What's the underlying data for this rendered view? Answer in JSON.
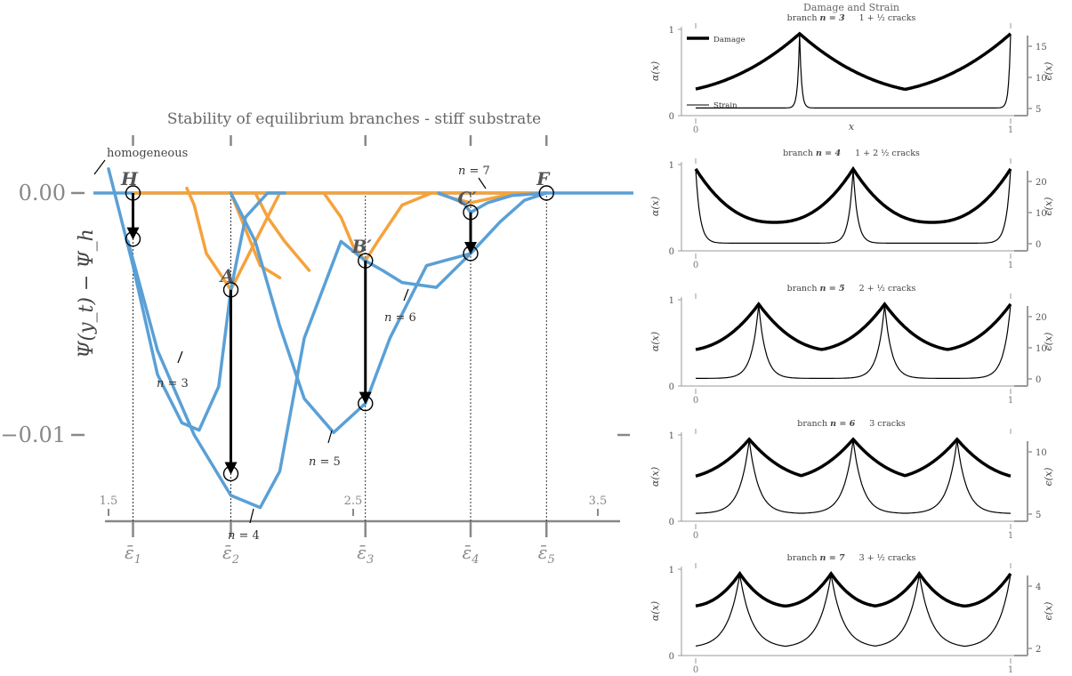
{
  "chart_data": [
    {
      "type": "line",
      "title": "Stability of equilibrium branches - stiff substrate",
      "ylabel": "Ψ(y_t) − Ψ_h",
      "xlim": [
        1.35,
        3.6
      ],
      "ylim": [
        -0.0135,
        0.0012
      ],
      "x_ticks": [
        1.5,
        2.5,
        3.5
      ],
      "y_ticks": [
        {
          "value": 0.0,
          "label": "0.00"
        },
        {
          "value": -0.01,
          "label": "−0.01"
        }
      ],
      "strain_marks": [
        {
          "label": "ε̄1",
          "sub": "1",
          "x": 1.6
        },
        {
          "label": "ε̄2",
          "sub": "2",
          "x": 2.0
        },
        {
          "label": "ε̄3",
          "sub": "3",
          "x": 2.55
        },
        {
          "label": "ε̄4",
          "sub": "4",
          "x": 2.98
        },
        {
          "label": "ε̄5",
          "sub": "5",
          "x": 3.29
        }
      ],
      "colors": {
        "stable": "#5aa0d6",
        "unstable": "#f5a23c",
        "axis": "#888888"
      },
      "points": [
        {
          "label": "H",
          "x": 1.6,
          "y": 0.0
        },
        {
          "label": "A",
          "x": 2.0,
          "y": -0.004
        },
        {
          "label": "B′",
          "x": 2.55,
          "y": -0.0028
        },
        {
          "label": "C′",
          "x": 2.98,
          "y": -0.0008
        },
        {
          "label": "F",
          "x": 3.29,
          "y": 0.0
        }
      ],
      "jumps": [
        {
          "x": 1.6,
          "from": 0.0,
          "to": -0.0019
        },
        {
          "x": 2.0,
          "from": -0.004,
          "to": -0.0116
        },
        {
          "x": 2.55,
          "from": -0.0028,
          "to": -0.0087
        },
        {
          "x": 2.98,
          "from": -0.0008,
          "to": -0.0025
        }
      ],
      "branch_labels": [
        {
          "label": "homogeneous",
          "text": "homogeneous"
        },
        {
          "label": "n = 3",
          "n": "3"
        },
        {
          "label": "n = 4",
          "n": "4"
        },
        {
          "label": "n = 5",
          "n": "5"
        },
        {
          "label": "n = 6",
          "n": "6"
        },
        {
          "label": "n = 7",
          "n": "7"
        }
      ],
      "series": [
        {
          "n": 3,
          "x": [
            1.5,
            1.6,
            1.7,
            1.8,
            1.87,
            1.95,
            2.0,
            2.06,
            2.15,
            2.22
          ],
          "y": [
            0.001,
            -0.003,
            -0.0075,
            -0.0095,
            -0.0098,
            -0.008,
            -0.004,
            -0.001,
            0.0,
            0.0
          ]
        },
        {
          "n": 4,
          "x": [
            1.58,
            1.7,
            1.85,
            2.0,
            2.12,
            2.2,
            2.3,
            2.45,
            2.55
          ],
          "y": [
            -0.002,
            -0.0065,
            -0.01,
            -0.0125,
            -0.013,
            -0.0115,
            -0.006,
            -0.002,
            -0.0028
          ]
        },
        {
          "n": 5,
          "x": [
            2.0,
            2.1,
            2.2,
            2.3,
            2.42,
            2.55,
            2.65,
            2.8,
            2.98
          ],
          "y": [
            0.0,
            -0.002,
            -0.0055,
            -0.0085,
            -0.0099,
            -0.0087,
            -0.006,
            -0.003,
            -0.0025
          ]
        },
        {
          "n": 6,
          "x": [
            2.55,
            2.62,
            2.7,
            2.84,
            2.98,
            3.1,
            3.2,
            3.29
          ],
          "y": [
            -0.0028,
            -0.0032,
            -0.0037,
            -0.0039,
            -0.0025,
            -0.0012,
            -0.0003,
            0.0
          ]
        },
        {
          "n": 7,
          "x": [
            2.85,
            2.95,
            2.98,
            3.05,
            3.15,
            3.29
          ],
          "y": [
            0.0,
            -0.0004,
            -0.0008,
            -0.0004,
            -0.0001,
            0.0
          ]
        }
      ]
    },
    {
      "type": "line",
      "title": "Damage and Strain",
      "xlabel": "x",
      "ylabel_left": "α(x)",
      "ylabel_right": "ϵ(x)",
      "legend": [
        {
          "name": "Damage"
        },
        {
          "name": "Strain"
        }
      ],
      "panels": [
        {
          "branch": "3",
          "cracks": "1 + ½ cracks",
          "peaks": [
            0.33,
            1.0
          ],
          "strain_ticks": [
            "5",
            "10",
            "15"
          ]
        },
        {
          "branch": "4",
          "cracks": "1 + 2 ½ cracks",
          "peaks": [
            0.0,
            0.5,
            1.0
          ],
          "strain_ticks": [
            "0",
            "10",
            "20"
          ]
        },
        {
          "branch": "5",
          "cracks": "2 + ½ cracks",
          "peaks": [
            0.2,
            0.6,
            1.0
          ],
          "strain_ticks": [
            "0",
            "10",
            "20"
          ]
        },
        {
          "branch": "6",
          "cracks": "3 cracks",
          "peaks": [
            0.17,
            0.5,
            0.83
          ],
          "strain_ticks": [
            "5",
            "10"
          ]
        },
        {
          "branch": "7",
          "cracks": "3 + ½ cracks",
          "peaks": [
            0.14,
            0.43,
            0.71,
            1.0
          ],
          "strain_ticks": [
            "2",
            "4"
          ]
        }
      ],
      "x_ticks": [
        "0",
        "1"
      ],
      "y_ticks": [
        "0",
        "1"
      ]
    }
  ]
}
